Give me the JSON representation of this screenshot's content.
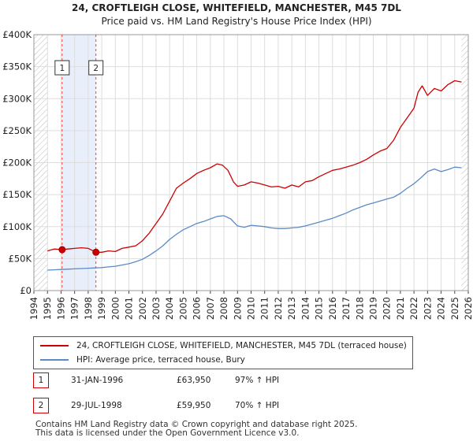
{
  "chart_data": {
    "type": "line",
    "title": "24, CROFTLEIGH CLOSE, WHITEFIELD, MANCHESTER, M45 7DL",
    "subtitle": "Price paid vs. HM Land Registry's House Price Index (HPI)",
    "xlabel": "",
    "ylabel": "",
    "xlim": [
      1994.0,
      2026.0
    ],
    "ylim": [
      0,
      400000
    ],
    "y_ticks": [
      0,
      50000,
      100000,
      150000,
      200000,
      250000,
      300000,
      350000,
      400000
    ],
    "y_tick_labels": [
      "£0",
      "£50K",
      "£100K",
      "£150K",
      "£200K",
      "£250K",
      "£300K",
      "£350K",
      "£400K"
    ],
    "x_ticks": [
      1994,
      1995,
      1996,
      1997,
      1998,
      1999,
      2000,
      2001,
      2002,
      2003,
      2004,
      2005,
      2006,
      2007,
      2008,
      2009,
      2010,
      2011,
      2012,
      2013,
      2014,
      2015,
      2016,
      2017,
      2018,
      2019,
      2020,
      2021,
      2022,
      2023,
      2024,
      2025,
      2026
    ],
    "x_tick_labels": [
      "1994",
      "1995",
      "1996",
      "1997",
      "1998",
      "1999",
      "2000",
      "2001",
      "2002",
      "2003",
      "2004",
      "2005",
      "2006",
      "2007",
      "2008",
      "2009",
      "2010",
      "2011",
      "2012",
      "2013",
      "2014",
      "2015",
      "2016",
      "2017",
      "2018",
      "2019",
      "2020",
      "2021",
      "2022",
      "2023",
      "2024",
      "2025",
      "2026"
    ],
    "grid": true,
    "data_extent": [
      1995.0,
      2025.5
    ],
    "shaded_region": [
      1996.08,
      1998.57
    ],
    "series": [
      {
        "name": "24, CROFTLEIGH CLOSE, WHITEFIELD, MANCHESTER, M45 7DL (terraced house)",
        "color": "#cc0000",
        "x": [
          1995.0,
          1995.5,
          1996.08,
          1996.5,
          1997.0,
          1997.5,
          1998.0,
          1998.57,
          1999.0,
          1999.5,
          2000.0,
          2000.5,
          2001.0,
          2001.5,
          2002.0,
          2002.5,
          2003.0,
          2003.5,
          2004.0,
          2004.5,
          2005.0,
          2005.5,
          2006.0,
          2006.5,
          2007.0,
          2007.5,
          2007.9,
          2008.3,
          2008.7,
          2009.0,
          2009.5,
          2010.0,
          2010.5,
          2011.0,
          2011.5,
          2012.0,
          2012.5,
          2013.0,
          2013.5,
          2014.0,
          2014.5,
          2015.0,
          2015.5,
          2016.0,
          2016.5,
          2017.0,
          2017.5,
          2018.0,
          2018.5,
          2019.0,
          2019.5,
          2020.0,
          2020.5,
          2021.0,
          2021.5,
          2022.0,
          2022.3,
          2022.6,
          2023.0,
          2023.5,
          2024.0,
          2024.5,
          2025.0,
          2025.5
        ],
        "values": [
          62000,
          65000,
          63950,
          65000,
          66000,
          67000,
          66000,
          59950,
          60000,
          62000,
          61000,
          66000,
          68000,
          70000,
          78000,
          90000,
          105000,
          120000,
          140000,
          160000,
          168000,
          175000,
          183000,
          188000,
          192000,
          198000,
          196000,
          188000,
          170000,
          163000,
          165000,
          170000,
          168000,
          165000,
          162000,
          163000,
          160000,
          165000,
          162000,
          170000,
          172000,
          178000,
          183000,
          188000,
          190000,
          193000,
          196000,
          200000,
          205000,
          212000,
          218000,
          222000,
          235000,
          255000,
          270000,
          285000,
          310000,
          320000,
          305000,
          316000,
          312000,
          322000,
          328000,
          326000
        ]
      },
      {
        "name": "HPI: Average price, terraced house, Bury",
        "color": "#5b8ac6",
        "x": [
          1995.0,
          1995.5,
          1996.0,
          1996.5,
          1997.0,
          1997.5,
          1998.0,
          1998.5,
          1999.0,
          1999.5,
          2000.0,
          2000.5,
          2001.0,
          2001.5,
          2002.0,
          2002.5,
          2003.0,
          2003.5,
          2004.0,
          2004.5,
          2005.0,
          2005.5,
          2006.0,
          2006.5,
          2007.0,
          2007.5,
          2008.0,
          2008.5,
          2009.0,
          2009.5,
          2010.0,
          2010.5,
          2011.0,
          2011.5,
          2012.0,
          2012.5,
          2013.0,
          2013.5,
          2014.0,
          2014.5,
          2015.0,
          2015.5,
          2016.0,
          2016.5,
          2017.0,
          2017.5,
          2018.0,
          2018.5,
          2019.0,
          2019.5,
          2020.0,
          2020.5,
          2021.0,
          2021.5,
          2022.0,
          2022.5,
          2023.0,
          2023.5,
          2024.0,
          2024.5,
          2025.0,
          2025.5
        ],
        "values": [
          32000,
          32500,
          33000,
          33500,
          34000,
          34500,
          35000,
          35500,
          36000,
          37000,
          38000,
          40000,
          42000,
          45000,
          49000,
          55000,
          62000,
          70000,
          80000,
          88000,
          95000,
          100000,
          105000,
          108000,
          112000,
          116000,
          117000,
          112000,
          101000,
          99000,
          102000,
          101000,
          100000,
          98000,
          97000,
          97000,
          98000,
          99000,
          101000,
          104000,
          107000,
          110000,
          113000,
          117000,
          121000,
          126000,
          130000,
          134000,
          137000,
          140000,
          143000,
          146000,
          152000,
          160000,
          167000,
          176000,
          186000,
          190000,
          186000,
          189000,
          193000,
          192000
        ]
      }
    ],
    "markers": [
      {
        "label": "1",
        "x": 1996.08,
        "y": 63950
      },
      {
        "label": "2",
        "x": 1998.57,
        "y": 59950
      }
    ]
  },
  "legend": {
    "property_label": "24, CROFTLEIGH CLOSE, WHITEFIELD, MANCHESTER, M45 7DL (terraced house)",
    "hpi_label": "HPI: Average price, terraced house, Bury"
  },
  "sales": [
    {
      "num": "1",
      "date": "31-JAN-1996",
      "price": "£63,950",
      "hpi": "97% ↑ HPI"
    },
    {
      "num": "2",
      "date": "29-JUL-1998",
      "price": "£59,950",
      "hpi": "70% ↑ HPI"
    }
  ],
  "footer": {
    "line1": "Contains HM Land Registry data © Crown copyright and database right 2025.",
    "line2": "This data is licensed under the Open Government Licence v3.0."
  }
}
